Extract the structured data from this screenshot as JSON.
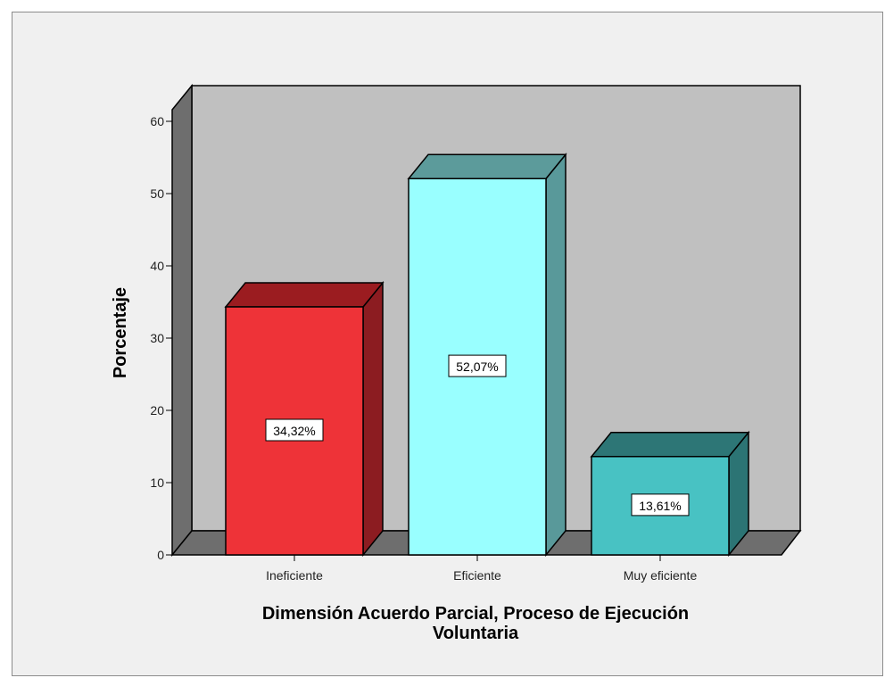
{
  "chart_data": {
    "type": "bar",
    "style": "3d",
    "categories": [
      "Ineficiente",
      "Eficiente",
      "Muy eficiente"
    ],
    "values": [
      34.32,
      52.07,
      13.61
    ],
    "data_labels": [
      "34,32%",
      "52,07%",
      "13,61%"
    ],
    "ylabel": "Porcentaje",
    "xlabel_lines": [
      "Dimensión Acuerdo Parcial, Proceso de Ejecución",
      "Voluntaria"
    ],
    "ylim": [
      0,
      60
    ],
    "yticks": [
      "0",
      "10",
      "20",
      "30",
      "40",
      "50",
      "60"
    ],
    "legend": "none",
    "grid": false,
    "colors": {
      "front": [
        "#ee3338",
        "#99ffff",
        "#48c2c3"
      ],
      "top": [
        "#9b1c20",
        "#5c9b9b",
        "#2d7676"
      ],
      "side": [
        "#8c1c21",
        "#59999a",
        "#2c7474"
      ],
      "back_wall": "#c0c0c0",
      "side_wall": "#6e6e6e",
      "floor": "#6e6e6e",
      "background": "#f0f0f0"
    }
  }
}
